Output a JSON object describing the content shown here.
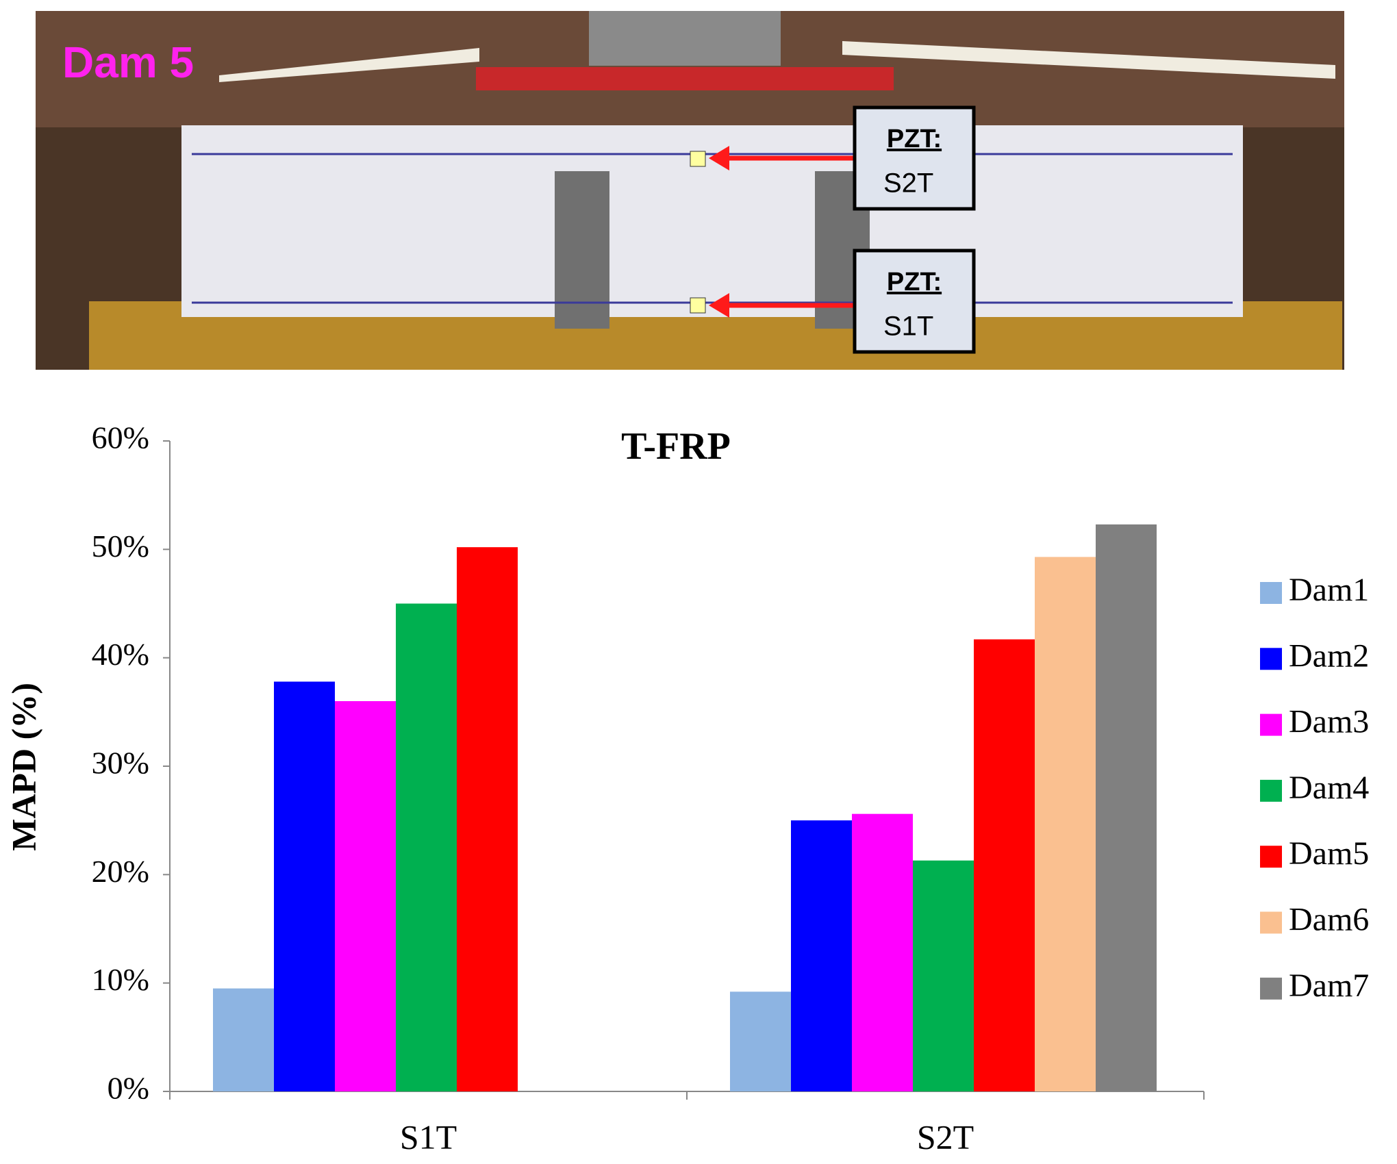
{
  "photo": {
    "label": "Dam 5",
    "callouts": [
      {
        "title": "PZT:",
        "sensor": "S2T"
      },
      {
        "title": "PZT:",
        "sensor": "S1T"
      }
    ]
  },
  "chart_data": {
    "type": "bar",
    "title": "T-FRP",
    "y_label": "MAPD (%)",
    "categories": [
      "S1T",
      "S2T"
    ],
    "series": [
      {
        "name": "Dam1",
        "color": "#8db4e2",
        "values": [
          9.5,
          9.2
        ]
      },
      {
        "name": "Dam2",
        "color": "#0000ff",
        "values": [
          37.8,
          25
        ]
      },
      {
        "name": "Dam3",
        "color": "#ff00ff",
        "values": [
          36,
          25.6
        ]
      },
      {
        "name": "Dam4",
        "color": "#00b050",
        "values": [
          45,
          21.3
        ]
      },
      {
        "name": "Dam5",
        "color": "#ff0000",
        "values": [
          50.2,
          41.7
        ]
      },
      {
        "name": "Dam6",
        "color": "#fac090",
        "values": [
          null,
          49.3
        ]
      },
      {
        "name": "Dam7",
        "color": "#808080",
        "values": [
          null,
          52.3
        ]
      }
    ],
    "ylim": [
      0,
      60
    ],
    "yticks": [
      {
        "value": 0,
        "label": "0%"
      },
      {
        "value": 10,
        "label": "10%"
      },
      {
        "value": 20,
        "label": "20%"
      },
      {
        "value": 30,
        "label": "30%"
      },
      {
        "value": 40,
        "label": "40%"
      },
      {
        "value": 50,
        "label": "50%"
      },
      {
        "value": 60,
        "label": "60%"
      }
    ],
    "grid": false,
    "legend": "right"
  }
}
